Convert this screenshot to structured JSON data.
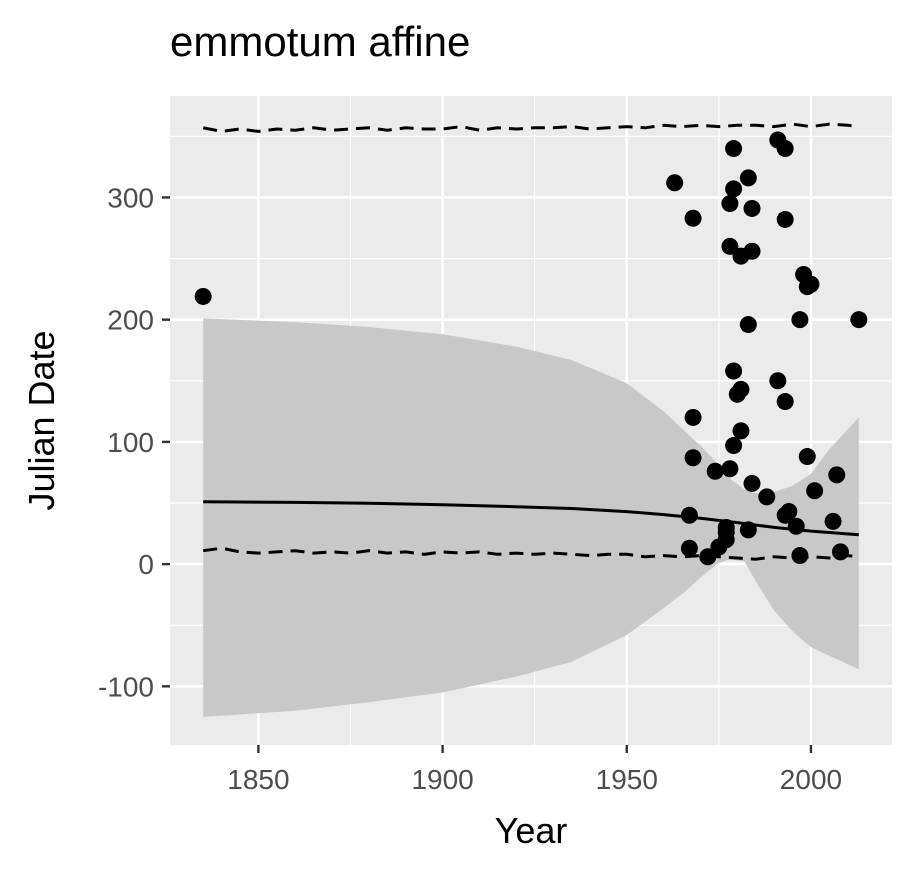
{
  "chart_data": {
    "type": "scatter",
    "title": "emmotum affine",
    "xlabel": "Year",
    "ylabel": "Julian Date",
    "xlim": [
      1826,
      2022
    ],
    "ylim": [
      -148,
      383
    ],
    "x_ticks": [
      1850,
      1900,
      1950,
      2000
    ],
    "y_ticks": [
      -100,
      0,
      100,
      200,
      300
    ],
    "x_tick_labels": [
      "1850",
      "1900",
      "1950",
      "2000"
    ],
    "y_tick_labels": [
      "-100",
      "0",
      "100",
      "200",
      "300"
    ],
    "grid": true,
    "background": "#ebebeb",
    "grid_color": "#ffffff",
    "point_color": "#000000",
    "ribbon_color": "#c8c8c8",
    "points": [
      [
        1835,
        219
      ],
      [
        1963,
        312
      ],
      [
        1968,
        283
      ],
      [
        1968,
        120
      ],
      [
        1968,
        87
      ],
      [
        1967,
        40
      ],
      [
        1967,
        13
      ],
      [
        1972,
        6
      ],
      [
        1974,
        76
      ],
      [
        1975,
        14
      ],
      [
        1977,
        20
      ],
      [
        1977,
        30
      ],
      [
        1977,
        26
      ],
      [
        1978,
        295
      ],
      [
        1978,
        260
      ],
      [
        1979,
        340
      ],
      [
        1979,
        307
      ],
      [
        1979,
        158
      ],
      [
        1979,
        97
      ],
      [
        1978,
        78
      ],
      [
        1980,
        139
      ],
      [
        1981,
        143
      ],
      [
        1981,
        109
      ],
      [
        1981,
        252
      ],
      [
        1983,
        316
      ],
      [
        1983,
        196
      ],
      [
        1983,
        28
      ],
      [
        1984,
        291
      ],
      [
        1984,
        256
      ],
      [
        1984,
        66
      ],
      [
        1988,
        55
      ],
      [
        1991,
        347
      ],
      [
        1991,
        150
      ],
      [
        1993,
        340
      ],
      [
        1993,
        282
      ],
      [
        1993,
        133
      ],
      [
        1993,
        40
      ],
      [
        1994,
        43
      ],
      [
        1996,
        31
      ],
      [
        1997,
        200
      ],
      [
        1997,
        7
      ],
      [
        1998,
        237
      ],
      [
        1999,
        227
      ],
      [
        1999,
        88
      ],
      [
        2000,
        229
      ],
      [
        2001,
        60
      ],
      [
        2006,
        35
      ],
      [
        2007,
        73
      ],
      [
        2008,
        10
      ],
      [
        2013,
        200
      ]
    ],
    "trend": {
      "x": [
        1835,
        1860,
        1880,
        1900,
        1920,
        1935,
        1950,
        1960,
        1970,
        1980,
        1990,
        2000,
        2013
      ],
      "y": [
        51,
        50.5,
        49.8,
        48.5,
        47,
        45.5,
        43,
        40.5,
        37.5,
        34,
        30,
        27,
        24
      ]
    },
    "ribbon": {
      "x": [
        1835,
        1860,
        1880,
        1900,
        1920,
        1935,
        1950,
        1960,
        1966,
        1970,
        1975,
        1978,
        1982,
        1985,
        1990,
        1995,
        2000,
        2005,
        2013
      ],
      "upper": [
        201,
        198,
        194,
        188,
        178,
        167,
        148,
        125,
        108,
        97,
        81,
        70,
        61,
        58,
        59,
        64,
        74,
        94,
        120
      ],
      "lower": [
        -125,
        -120,
        -113,
        -105,
        -92,
        -80,
        -58,
        -36,
        -22,
        -11,
        1,
        4,
        2,
        -14,
        -38,
        -55,
        -68,
        -75,
        -86
      ]
    },
    "upper_dashed": {
      "x": [
        1835,
        1840,
        1845,
        1850,
        1855,
        1860,
        1865,
        1870,
        1875,
        1880,
        1885,
        1890,
        1895,
        1900,
        1905,
        1910,
        1915,
        1920,
        1925,
        1930,
        1935,
        1940,
        1945,
        1950,
        1955,
        1960,
        1965,
        1970,
        1975,
        1980,
        1985,
        1990,
        1995,
        2000,
        2005,
        2010,
        2013
      ],
      "y": [
        357,
        354,
        356,
        354,
        356,
        355,
        357,
        355,
        356,
        357,
        355,
        357,
        356,
        356,
        358,
        355,
        357,
        356,
        357,
        357,
        358,
        356,
        357,
        358,
        357,
        359,
        358,
        359,
        358,
        359,
        359,
        358,
        360,
        358,
        360,
        359,
        358
      ]
    },
    "lower_dashed": {
      "x": [
        1835,
        1840,
        1845,
        1850,
        1855,
        1860,
        1865,
        1870,
        1875,
        1880,
        1885,
        1890,
        1895,
        1900,
        1905,
        1910,
        1915,
        1920,
        1925,
        1930,
        1935,
        1940,
        1945,
        1950,
        1955,
        1960,
        1965,
        1970,
        1975,
        1980,
        1985,
        1990,
        1995,
        2000,
        2005,
        2010,
        2013
      ],
      "y": [
        11,
        13,
        10,
        9,
        10,
        11,
        9,
        10,
        9,
        11,
        9,
        10,
        8,
        10,
        9,
        10,
        8,
        9,
        8,
        9,
        8,
        7,
        8,
        8,
        6,
        7,
        6,
        7,
        6,
        5,
        4,
        6,
        5,
        6,
        5,
        7,
        6
      ]
    }
  }
}
